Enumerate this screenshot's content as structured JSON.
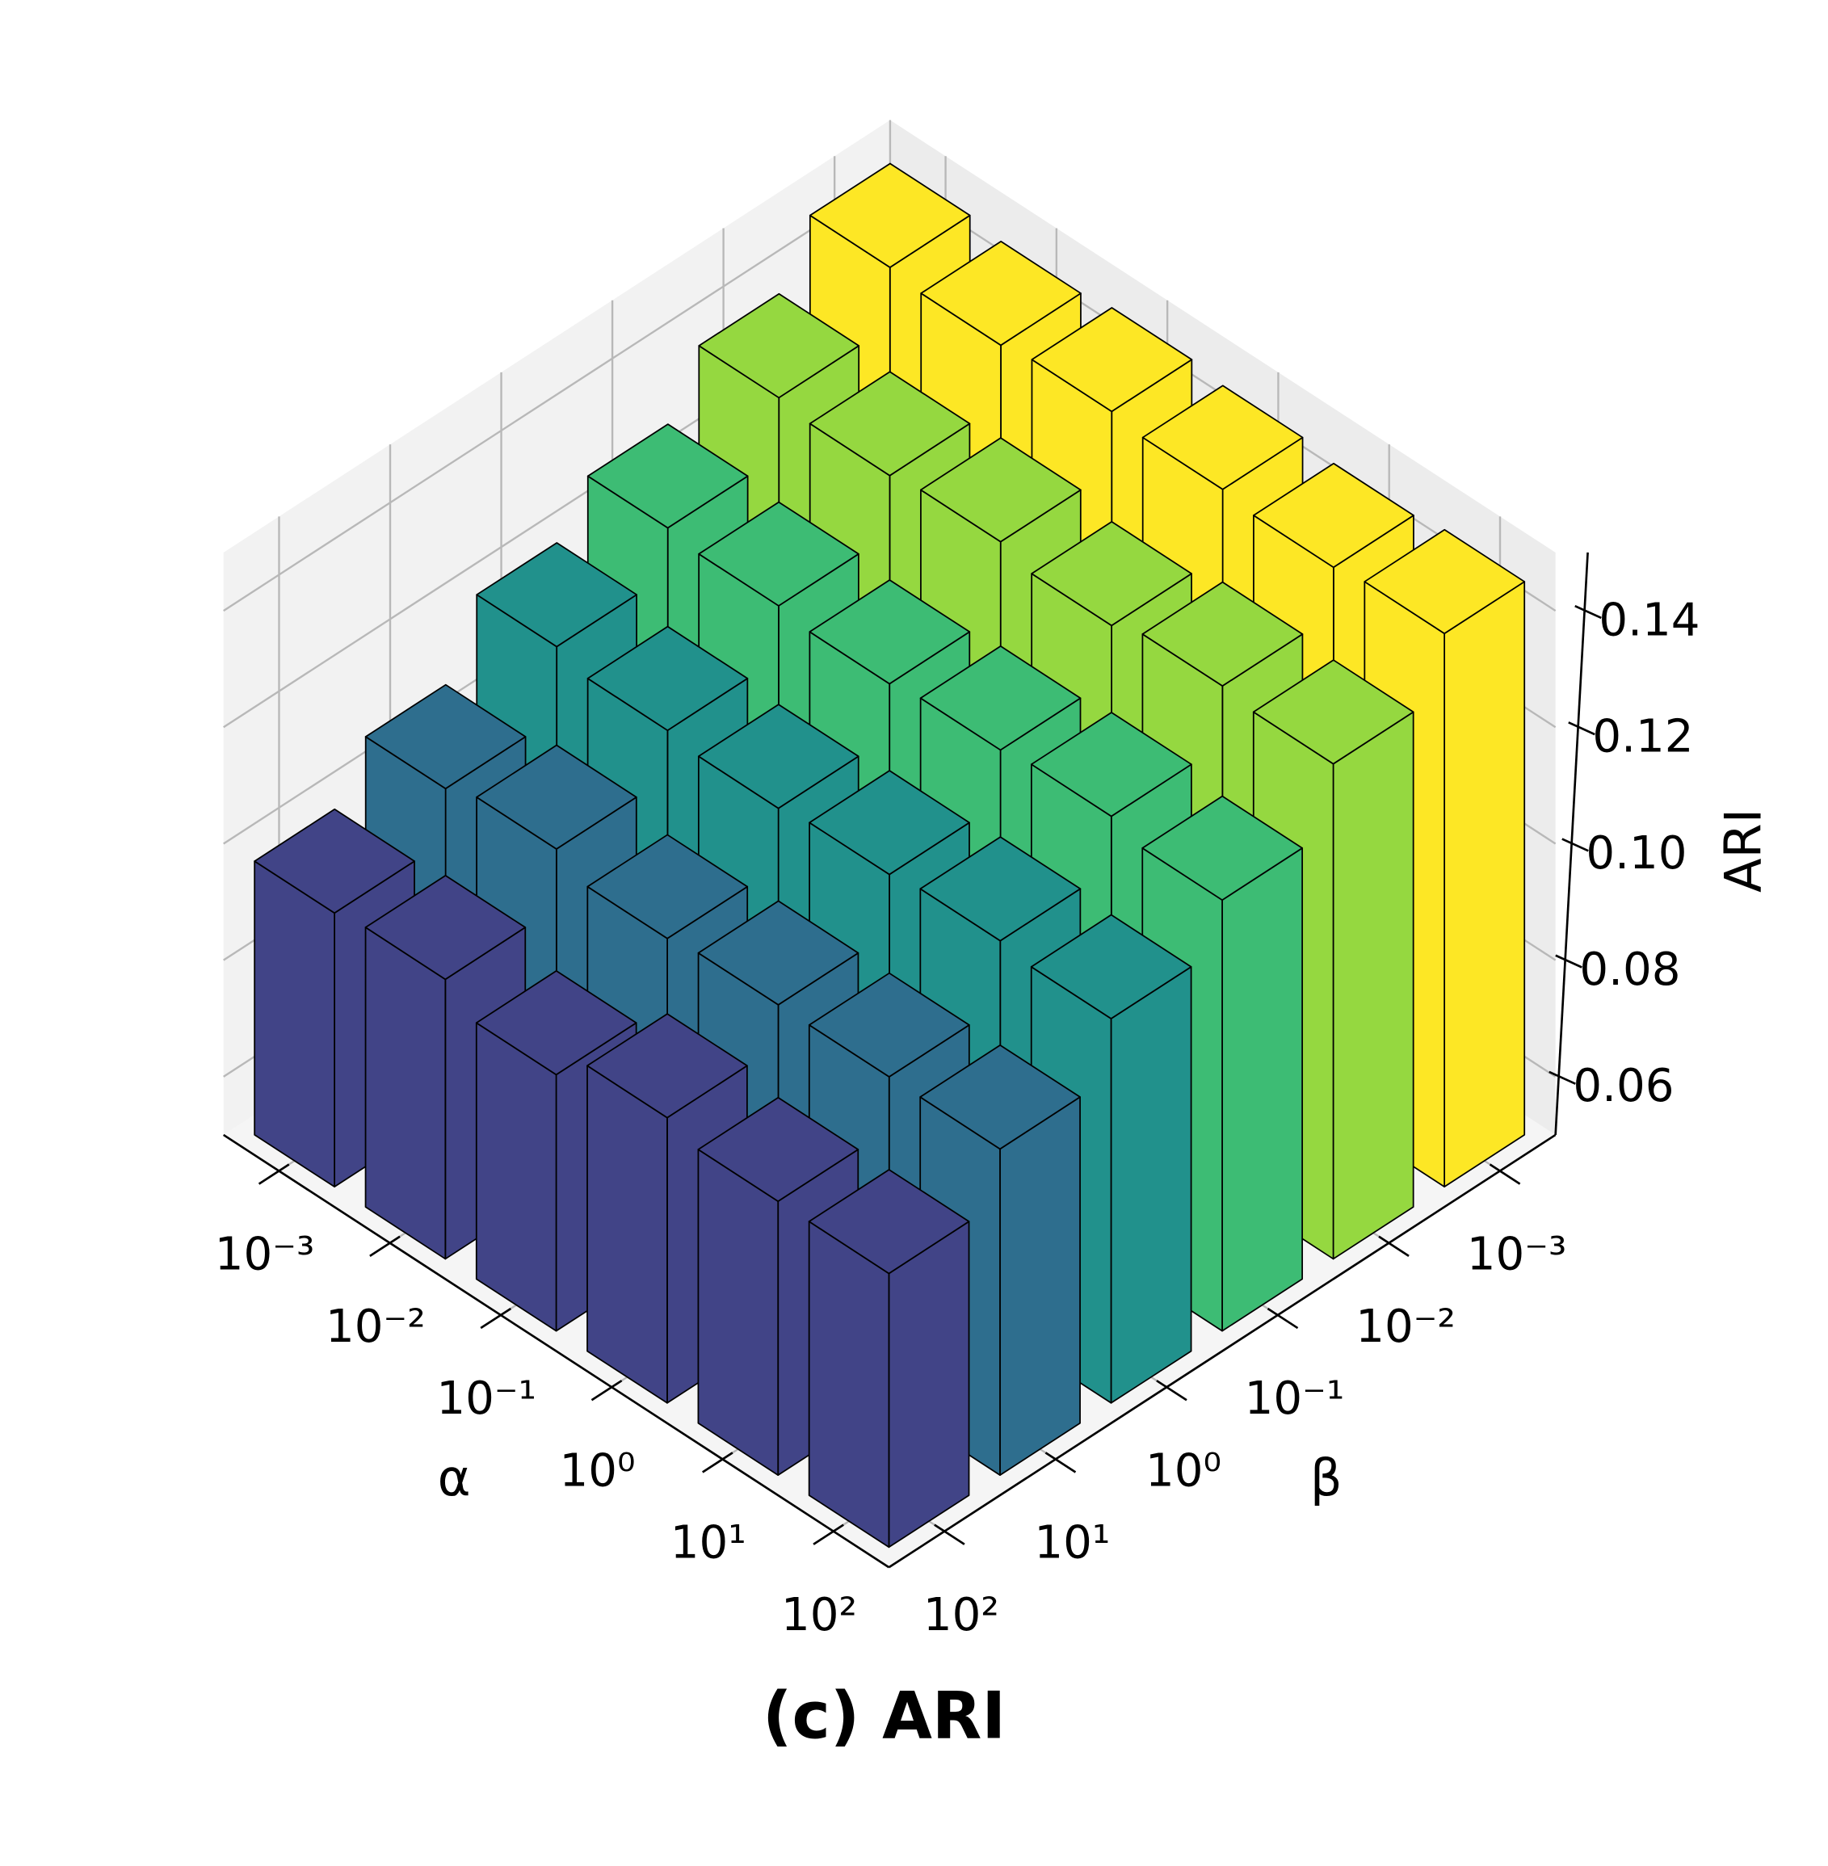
{
  "chart_data": {
    "type": "bar3d",
    "title": "(c) ARI",
    "x_label": "α",
    "y_label": "β",
    "z_label": "ARI",
    "x_categories": [
      "10⁻³",
      "10⁻²",
      "10⁻¹",
      "10⁰",
      "10¹",
      "10²"
    ],
    "y_categories": [
      "10⁻³",
      "10⁻²",
      "10⁻¹",
      "10⁰",
      "10¹",
      "10²"
    ],
    "values": [
      [
        0.146,
        0.136,
        0.126,
        0.118,
        0.106,
        0.097
      ],
      [
        0.145,
        0.135,
        0.125,
        0.116,
        0.108,
        0.098
      ],
      [
        0.146,
        0.136,
        0.124,
        0.115,
        0.105,
        0.094
      ],
      [
        0.145,
        0.134,
        0.125,
        0.116,
        0.106,
        0.099
      ],
      [
        0.144,
        0.136,
        0.126,
        0.117,
        0.106,
        0.097
      ],
      [
        0.145,
        0.135,
        0.124,
        0.116,
        0.106,
        0.097
      ]
    ],
    "colors": [
      "#fde725",
      "#95d840",
      "#3dbc74",
      "#21918c",
      "#2e6e8e",
      "#414487"
    ],
    "zlim": [
      0.05,
      0.15
    ],
    "zticks": [
      0.06,
      0.08,
      {
        "value": 0.1,
        "label": "0.10"
      },
      0.12,
      0.14
    ],
    "grid": true
  }
}
